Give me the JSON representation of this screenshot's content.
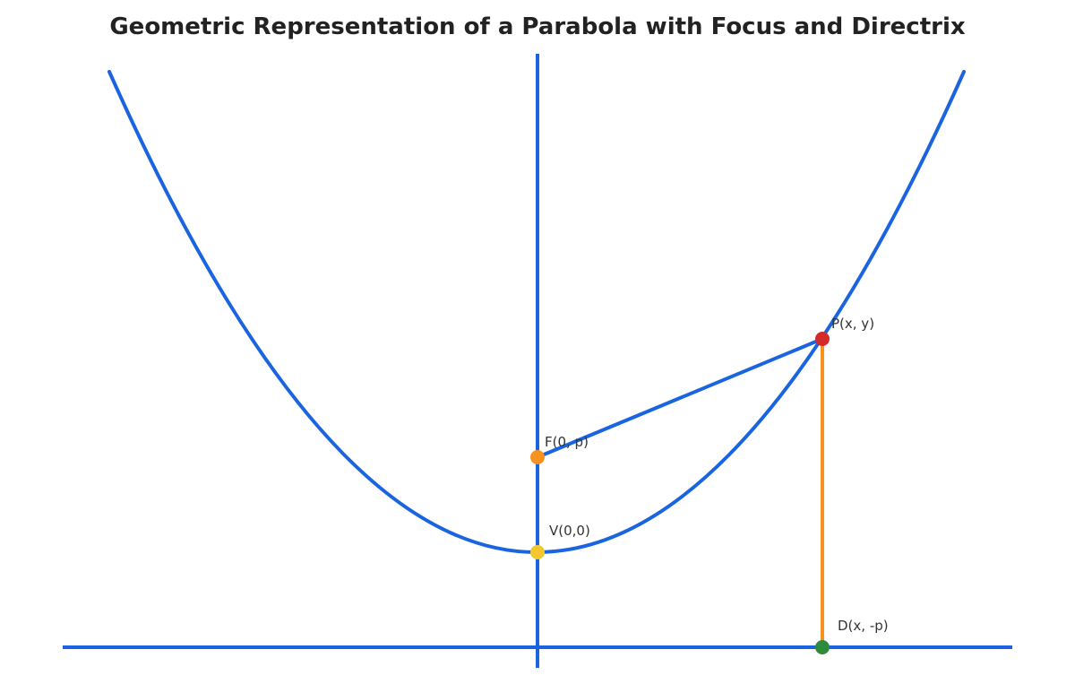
{
  "title": "Geometric Representation of a Parabola with Focus and Directrix",
  "points": [
    {
      "label": "P(x, y)"
    },
    {
      "label": "F(0, p)"
    },
    {
      "label": "V(0,0)"
    },
    {
      "label": "D(x, -p)"
    }
  ]
}
